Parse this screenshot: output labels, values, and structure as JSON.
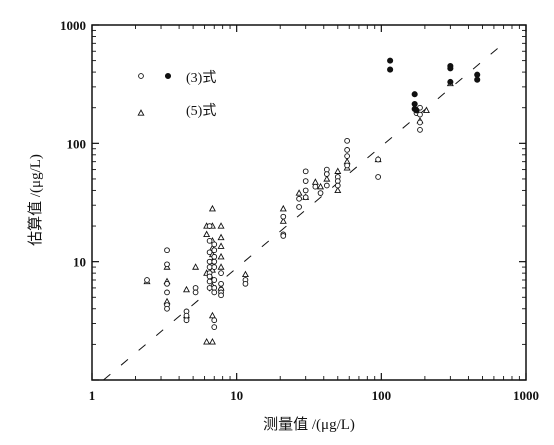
{
  "chart_data": {
    "type": "scatter",
    "xlabel": "测量值 /(μg/L)",
    "ylabel": "估算值 /(μg/L)",
    "x_scale": "log",
    "y_scale": "log",
    "xlim": [
      1,
      1000
    ],
    "ylim": [
      1,
      1000
    ],
    "x_ticks": [
      "1",
      "10",
      "100",
      "1000"
    ],
    "y_ticks": [
      "10",
      "100",
      "1000"
    ],
    "grid": false,
    "legend_position": "top-left",
    "legend": [
      {
        "label": "(3)式",
        "markers": [
          "open-circle",
          "filled-circle"
        ]
      },
      {
        "label": "(5)式",
        "markers": [
          "open-triangle"
        ]
      }
    ],
    "reference_line": {
      "style": "dashed",
      "points": [
        [
          1.2,
          1
        ],
        [
          750,
          750
        ]
      ]
    },
    "series": [
      {
        "name": "(3)式",
        "marker": "circle",
        "points": [
          [
            2.4,
            7.0
          ],
          [
            3.3,
            12.5
          ],
          [
            3.3,
            9.5
          ],
          [
            3.3,
            6.5
          ],
          [
            3.3,
            5.5
          ],
          [
            3.3,
            4.3
          ],
          [
            3.3,
            4.0
          ],
          [
            4.5,
            3.8
          ],
          [
            4.5,
            3.5
          ],
          [
            4.5,
            3.2
          ],
          [
            5.2,
            6.0
          ],
          [
            5.2,
            5.5
          ],
          [
            6.5,
            20
          ],
          [
            6.5,
            15
          ],
          [
            6.5,
            12
          ],
          [
            6.5,
            10
          ],
          [
            6.5,
            9.0
          ],
          [
            6.5,
            8.0
          ],
          [
            6.5,
            7.5
          ],
          [
            6.5,
            6.8
          ],
          [
            6.5,
            6.0
          ],
          [
            7.0,
            14
          ],
          [
            7.0,
            12.5
          ],
          [
            7.0,
            11
          ],
          [
            7.0,
            10
          ],
          [
            7.0,
            9.0
          ],
          [
            7.0,
            7.0
          ],
          [
            7.0,
            6.0
          ],
          [
            7.0,
            5.5
          ],
          [
            7.0,
            3.2
          ],
          [
            7.0,
            2.8
          ],
          [
            7.8,
            8.0
          ],
          [
            7.8,
            6.5
          ],
          [
            7.8,
            5.8
          ],
          [
            7.8,
            5.5
          ],
          [
            7.8,
            5.2
          ],
          [
            11.5,
            7.0
          ],
          [
            11.5,
            6.5
          ],
          [
            21,
            24
          ],
          [
            21,
            17
          ],
          [
            21,
            16.5
          ],
          [
            27,
            34
          ],
          [
            27,
            29
          ],
          [
            30,
            58
          ],
          [
            30,
            48
          ],
          [
            30,
            40
          ],
          [
            30,
            35
          ],
          [
            35,
            43
          ],
          [
            38,
            38
          ],
          [
            42,
            60
          ],
          [
            42,
            55
          ],
          [
            42,
            44
          ],
          [
            50,
            52
          ],
          [
            50,
            48
          ],
          [
            50,
            44
          ],
          [
            58,
            105
          ],
          [
            58,
            88
          ],
          [
            58,
            78
          ],
          [
            58,
            65
          ],
          [
            95,
            73
          ],
          [
            95,
            52
          ],
          [
            175,
            180
          ],
          [
            185,
            200
          ],
          [
            185,
            175
          ],
          [
            185,
            150
          ],
          [
            185,
            130
          ]
        ],
        "filled_points": [
          [
            115,
            500
          ],
          [
            115,
            420
          ],
          [
            170,
            260
          ],
          [
            170,
            215
          ],
          [
            170,
            195
          ],
          [
            175,
            190
          ],
          [
            300,
            450
          ],
          [
            300,
            430
          ],
          [
            300,
            330
          ],
          [
            460,
            380
          ],
          [
            460,
            345
          ]
        ]
      },
      {
        "name": "(5)式",
        "marker": "triangle",
        "points": [
          [
            2.4,
            6.8
          ],
          [
            3.3,
            9.0
          ],
          [
            3.3,
            6.8
          ],
          [
            3.3,
            4.6
          ],
          [
            4.5,
            5.8
          ],
          [
            4.5,
            3.5
          ],
          [
            5.2,
            9.0
          ],
          [
            6.2,
            20
          ],
          [
            6.2,
            17
          ],
          [
            6.2,
            8.0
          ],
          [
            6.2,
            2.1
          ],
          [
            6.8,
            28
          ],
          [
            6.8,
            20
          ],
          [
            6.8,
            15
          ],
          [
            6.8,
            13
          ],
          [
            6.8,
            11.5
          ],
          [
            6.8,
            10
          ],
          [
            6.8,
            8.5
          ],
          [
            6.8,
            7.0
          ],
          [
            6.8,
            6.2
          ],
          [
            6.8,
            3.5
          ],
          [
            6.8,
            2.1
          ],
          [
            7.8,
            20
          ],
          [
            7.8,
            16
          ],
          [
            7.8,
            13.5
          ],
          [
            7.8,
            11
          ],
          [
            7.8,
            9.0
          ],
          [
            7.8,
            6.0
          ],
          [
            11.5,
            7.8
          ],
          [
            21,
            28
          ],
          [
            21,
            22
          ],
          [
            27,
            38
          ],
          [
            30,
            35
          ],
          [
            35,
            47
          ],
          [
            38,
            43
          ],
          [
            42,
            50
          ],
          [
            50,
            58
          ],
          [
            50,
            40
          ],
          [
            58,
            70
          ],
          [
            58,
            62
          ],
          [
            95,
            73
          ],
          [
            185,
            155
          ],
          [
            205,
            190
          ],
          [
            300,
            320
          ]
        ]
      }
    ]
  }
}
